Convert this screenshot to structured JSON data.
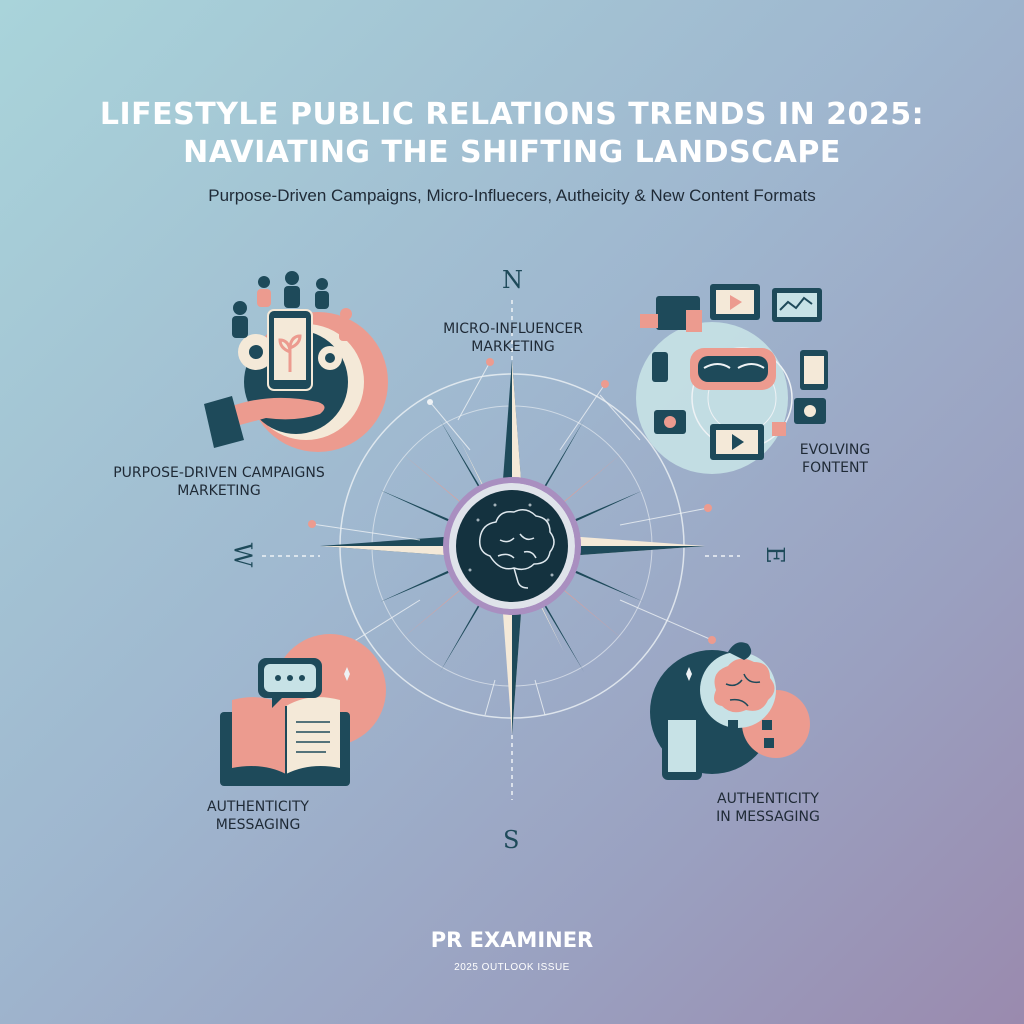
{
  "header": {
    "title_line1": "LIFESTYLE PUBLIC RELATIONS TRENDS IN 2025:",
    "title_line2": "NAVIATING THE SHIFTING LANDSCAPE",
    "subtitle": "Purpose-Driven Campaigns, Micro-Influecers, Autheicity & New Content Formats"
  },
  "compass": {
    "north": "N",
    "south": "S",
    "east": "E",
    "west": "W"
  },
  "labels": {
    "top_center_line1": "MICRO-INFLUENCER",
    "top_center_line2": "MARKETING",
    "left_line1": "PURPOSE-DRIVEN CAMPAIGNS",
    "left_line2": "MARKETING",
    "right_line1": "EVOLVING",
    "right_line2": "FONTENT",
    "bottom_left_line1": "AUTHENTICITY",
    "bottom_left_line2": "MESSAGING",
    "bottom_right_line1": "AUTHENTICITY",
    "bottom_right_line2": "IN MESSAGING"
  },
  "footer": {
    "brand": "PR EXAMINER",
    "issue": "2025 OUTLOOK ISSUE"
  },
  "icons": [
    "community-hand-icon",
    "compass-rose-icon",
    "brain-icon",
    "media-devices-icon",
    "open-book-icon",
    "phone-brain-icon"
  ],
  "colors": {
    "teal_dark": "#1e4a5a",
    "coral": "#ec9b8f",
    "cream": "#f4e9d8",
    "lavender": "#a98fc0"
  }
}
